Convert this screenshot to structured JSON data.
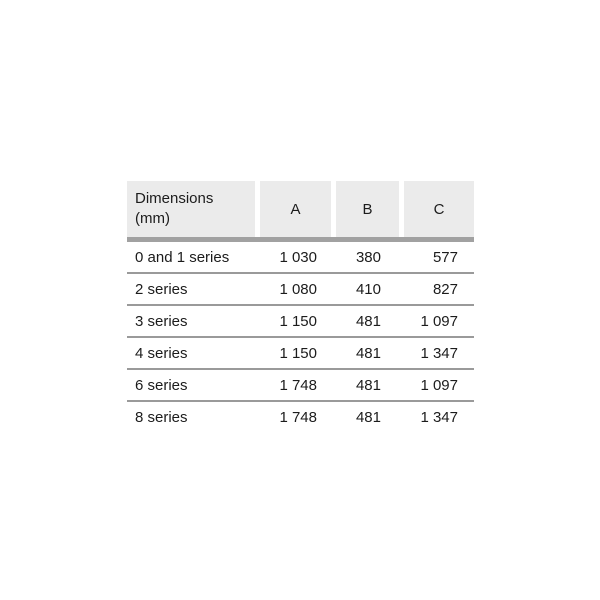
{
  "table": {
    "header": {
      "dimension_label_line1": "Dimensions",
      "dimension_label_line2": "(mm)",
      "cols": [
        "A",
        "B",
        "C"
      ]
    },
    "rows": [
      {
        "label": "0 and 1 series",
        "values": [
          "1 030",
          "380",
          "577"
        ]
      },
      {
        "label": "2 series",
        "values": [
          "1 080",
          "410",
          "827"
        ]
      },
      {
        "label": "3 series",
        "values": [
          "1 150",
          "481",
          "1 097"
        ]
      },
      {
        "label": "4 series",
        "values": [
          "1 150",
          "481",
          "1 347"
        ]
      },
      {
        "label": "6 series",
        "values": [
          "1 748",
          "481",
          "1 097"
        ]
      },
      {
        "label": "8 series",
        "values": [
          "1 748",
          "481",
          "1 347"
        ]
      }
    ],
    "colors": {
      "header_bg": "#ebebeb",
      "header_rule": "#a1a1a1",
      "row_rule": "#9a9a9a",
      "text": "#1c1c1c",
      "page_bg": "#ffffff"
    }
  }
}
